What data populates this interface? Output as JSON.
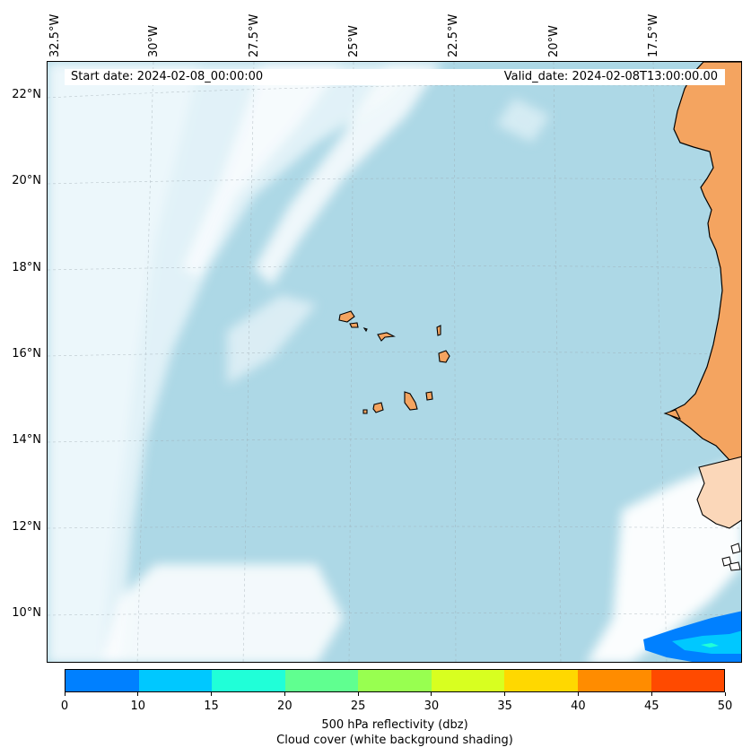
{
  "header": {
    "start_date": "Start date: 2024-02-08_00:00:00",
    "valid_date": "Valid_date: 2024-02-08T13:00:00.00"
  },
  "axes": {
    "lon_labels": [
      "32.5°W",
      "30°W",
      "27.5°W",
      "25°W",
      "22.5°W",
      "20°W",
      "17.5°W"
    ],
    "lat_labels": [
      "22°N",
      "20°N",
      "18°N",
      "16°N",
      "14°N",
      "12°N",
      "10°N"
    ]
  },
  "colorbar": {
    "ticks": [
      "0",
      "10",
      "15",
      "20",
      "25",
      "30",
      "35",
      "40",
      "45",
      "50"
    ],
    "colors": [
      "#0080ff",
      "#00c8ff",
      "#20ffd8",
      "#60ff90",
      "#98ff50",
      "#d8ff20",
      "#ffd800",
      "#ff8c00",
      "#ff4a00"
    ],
    "label_line1": "500 hPa reflectivity (dbz)",
    "label_line2": "Cloud cover (white background shading)"
  },
  "map": {
    "ocean_color": "#add8e6",
    "land_color": "#f4a460",
    "cloud_color": "#ffffff",
    "coastline_color": "#000000"
  }
}
